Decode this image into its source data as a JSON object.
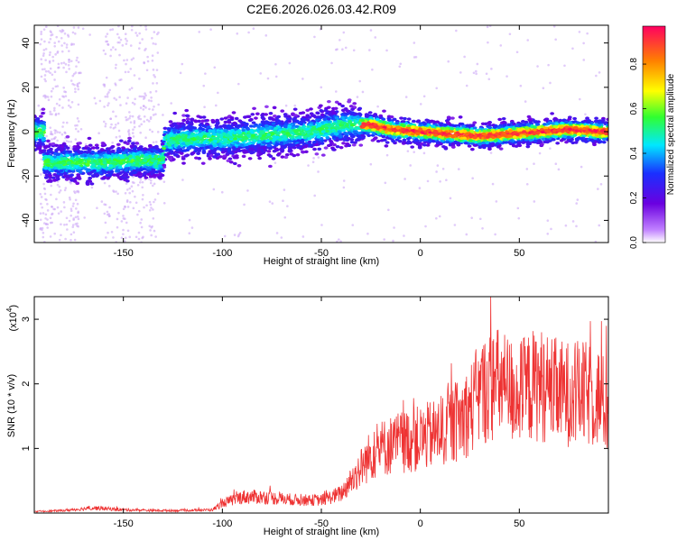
{
  "chart_data": [
    {
      "type": "heatmap",
      "title": "C2E6.2026.026.03.42.R09",
      "xlabel": "Height of straight line (km)",
      "ylabel": "Frequency (Hz)",
      "xlim": [
        -195,
        95
      ],
      "ylim": [
        -50,
        48
      ],
      "xticks": [
        -150,
        -100,
        -50,
        0,
        50
      ],
      "yticks": [
        -40,
        -20,
        0,
        20,
        40
      ],
      "colorbar": {
        "label": "Normalized spectral amplitude",
        "range": [
          0,
          0.97
        ],
        "ticks": [
          0.0,
          0.2,
          0.4,
          0.6,
          0.8
        ]
      },
      "ridge": {
        "x": [
          -190,
          -175,
          -160,
          -145,
          -130,
          -129,
          -115,
          -100,
          -85,
          -70,
          -55,
          -45,
          -35,
          -25,
          -15,
          0,
          15,
          30,
          45,
          60,
          75,
          90
        ],
        "frequency": [
          -14,
          -14,
          -14,
          -13,
          -13,
          -4,
          -3,
          -3,
          -2,
          -1,
          0,
          2,
          3,
          3,
          1,
          0,
          -1,
          -2,
          -1,
          0,
          1,
          0
        ]
      }
    },
    {
      "type": "line",
      "xlabel": "Height of straight line (km)",
      "ylabel": "SNR (10 * v/v)",
      "exponent_label": "(x10",
      "exponent_power": "4",
      "exponent_close": ")",
      "xlim": [
        -195,
        95
      ],
      "ylim": [
        0,
        3.35
      ],
      "xticks": [
        -150,
        -100,
        -50,
        0,
        50
      ],
      "yticks": [
        1,
        2,
        3
      ],
      "series": [
        {
          "name": "SNR",
          "color": "#ee3333",
          "x": [
            -195,
            -180,
            -165,
            -150,
            -135,
            -120,
            -105,
            -100,
            -90,
            -80,
            -70,
            -60,
            -50,
            -40,
            -35,
            -25,
            -20,
            -10,
            0,
            10,
            20,
            25,
            30,
            35,
            40,
            45,
            50,
            55,
            60,
            70,
            80,
            90,
            95
          ],
          "y": [
            0.02,
            0.04,
            0.08,
            0.05,
            0.04,
            0.04,
            0.05,
            0.15,
            0.25,
            0.25,
            0.22,
            0.2,
            0.2,
            0.3,
            0.5,
            0.9,
            1.0,
            1.1,
            1.15,
            1.25,
            1.45,
            1.6,
            1.85,
            1.95,
            2.0,
            1.9,
            1.85,
            1.95,
            2.0,
            1.85,
            1.85,
            1.8,
            1.6
          ]
        }
      ]
    }
  ]
}
